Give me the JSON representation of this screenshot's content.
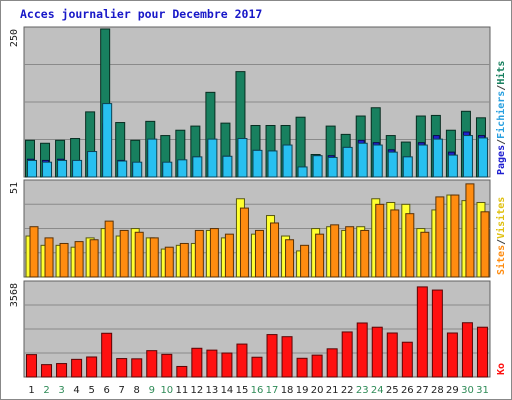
{
  "chart_data": {
    "type": "bar",
    "title": "Acces journalier pour Decembre 2017",
    "categories": [
      "1",
      "2",
      "3",
      "4",
      "5",
      "6",
      "7",
      "8",
      "9",
      "10",
      "11",
      "12",
      "13",
      "14",
      "15",
      "16",
      "17",
      "18",
      "19",
      "20",
      "21",
      "22",
      "23",
      "24",
      "25",
      "26",
      "27",
      "28",
      "29",
      "30",
      "31"
    ],
    "weekend_days": [
      "2",
      "3",
      "9",
      "10",
      "16",
      "17",
      "23",
      "24",
      "30",
      "31"
    ],
    "panels": [
      {
        "name": "hits-pages-files",
        "ymax_label": "250",
        "ymax": 250,
        "series": [
          {
            "name": "Hits",
            "color": "#18805f",
            "values": [
              62,
              57,
              62,
              65,
              110,
              250,
              92,
              62,
              94,
              70,
              79,
              86,
              143,
              91,
              178,
              87,
              87,
              87,
              101,
              38,
              86,
              72,
              103,
              117,
              70,
              59,
              103,
              104,
              79,
              111,
              100
            ]
          },
          {
            "name": "Fichiers",
            "color": "#28c0f0",
            "values": [
              28,
              25,
              28,
              28,
              43,
              124,
              27,
              25,
              64,
              25,
              29,
              34,
              64,
              35,
              65,
              45,
              44,
              54,
              17,
              36,
              33,
              50,
              57,
              54,
              42,
              34,
              54,
              64,
              37,
              70,
              66
            ]
          },
          {
            "name": "Pages",
            "color": "#2020d0",
            "values": [
              30,
              28,
              30,
              26,
              43,
              90,
              28,
              24,
              60,
              24,
              28,
              34,
              62,
              35,
              62,
              45,
              44,
              54,
              16,
              36,
              36,
              50,
              62,
              58,
              46,
              34,
              58,
              70,
              42,
              76,
              70
            ]
          }
        ],
        "axis_title": [
          {
            "text": "Pages",
            "color": "#2020d0"
          },
          {
            "text": "/",
            "color": "#404040"
          },
          {
            "text": "Fichiers",
            "color": "#28a0e0"
          },
          {
            "text": "/",
            "color": "#404040"
          },
          {
            "text": "Hits",
            "color": "#18805f"
          }
        ]
      },
      {
        "name": "visites-sites",
        "ymax_label": "51",
        "ymax": 51,
        "series": [
          {
            "name": "Visites",
            "color": "#ffff30",
            "values": [
              22,
              17,
              17,
              16,
              21,
              26,
              22,
              26,
              21,
              15,
              17,
              18,
              25,
              21,
              42,
              23,
              33,
              22,
              14,
              26,
              27,
              25,
              27,
              42,
              40,
              39,
              26,
              36,
              44,
              41,
              40
            ]
          },
          {
            "name": "Sites",
            "color": "#ff8c10",
            "values": [
              27,
              21,
              18,
              19,
              20,
              30,
              25,
              24,
              21,
              16,
              18,
              25,
              26,
              23,
              37,
              25,
              29,
              20,
              17,
              23,
              28,
              27,
              25,
              39,
              36,
              34,
              24,
              43,
              44,
              50,
              35
            ]
          }
        ],
        "axis_title": [
          {
            "text": "Sites",
            "color": "#ff8c10"
          },
          {
            "text": "/",
            "color": "#404040"
          },
          {
            "text": "Visites",
            "color": "#e0c010"
          }
        ]
      },
      {
        "name": "ko",
        "ymax_label": "3568",
        "ymax": 3568,
        "series": [
          {
            "name": "Ko",
            "color": "#ff1010",
            "values": [
              850,
              470,
              510,
              670,
              760,
              1660,
              700,
              690,
              1000,
              860,
              400,
              1090,
              1020,
              910,
              1250,
              750,
              1610,
              1530,
              710,
              830,
              1070,
              1710,
              2050,
              1890,
              1670,
              1320,
              3420,
              3300,
              1670,
              2060,
              1890
            ]
          }
        ],
        "axis_title": [
          {
            "text": "Ko",
            "color": "#ff1010"
          }
        ]
      }
    ]
  }
}
